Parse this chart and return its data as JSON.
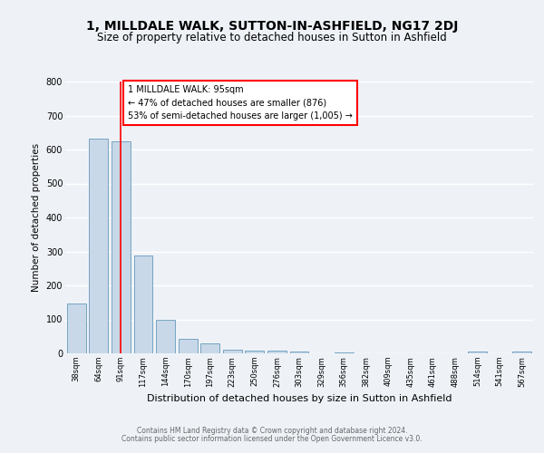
{
  "title": "1, MILLDALE WALK, SUTTON-IN-ASHFIELD, NG17 2DJ",
  "subtitle": "Size of property relative to detached houses in Sutton in Ashfield",
  "xlabel": "Distribution of detached houses by size in Sutton in Ashfield",
  "ylabel": "Number of detached properties",
  "bar_labels": [
    "38sqm",
    "64sqm",
    "91sqm",
    "117sqm",
    "144sqm",
    "170sqm",
    "197sqm",
    "223sqm",
    "250sqm",
    "276sqm",
    "303sqm",
    "329sqm",
    "356sqm",
    "382sqm",
    "409sqm",
    "435sqm",
    "461sqm",
    "488sqm",
    "514sqm",
    "541sqm",
    "567sqm"
  ],
  "bar_values": [
    148,
    632,
    625,
    287,
    100,
    43,
    30,
    12,
    8,
    7,
    5,
    0,
    2,
    0,
    0,
    0,
    0,
    0,
    5,
    0,
    5
  ],
  "bar_color": "#c8d8e8",
  "bar_edge_color": "#6699bb",
  "ylim": [
    0,
    800
  ],
  "yticks": [
    0,
    100,
    200,
    300,
    400,
    500,
    600,
    700,
    800
  ],
  "red_line_x": 2,
  "annotation_title": "1 MILLDALE WALK: 95sqm",
  "annotation_line1": "← 47% of detached houses are smaller (876)",
  "annotation_line2": "53% of semi-detached houses are larger (1,005) →",
  "footer_line1": "Contains HM Land Registry data © Crown copyright and database right 2024.",
  "footer_line2": "Contains public sector information licensed under the Open Government Licence v3.0.",
  "background_color": "#eef2f7",
  "grid_color": "#ffffff",
  "title_fontsize": 10,
  "subtitle_fontsize": 8.5,
  "xlabel_fontsize": 8,
  "ylabel_fontsize": 7.5,
  "footer_fontsize": 5.5
}
